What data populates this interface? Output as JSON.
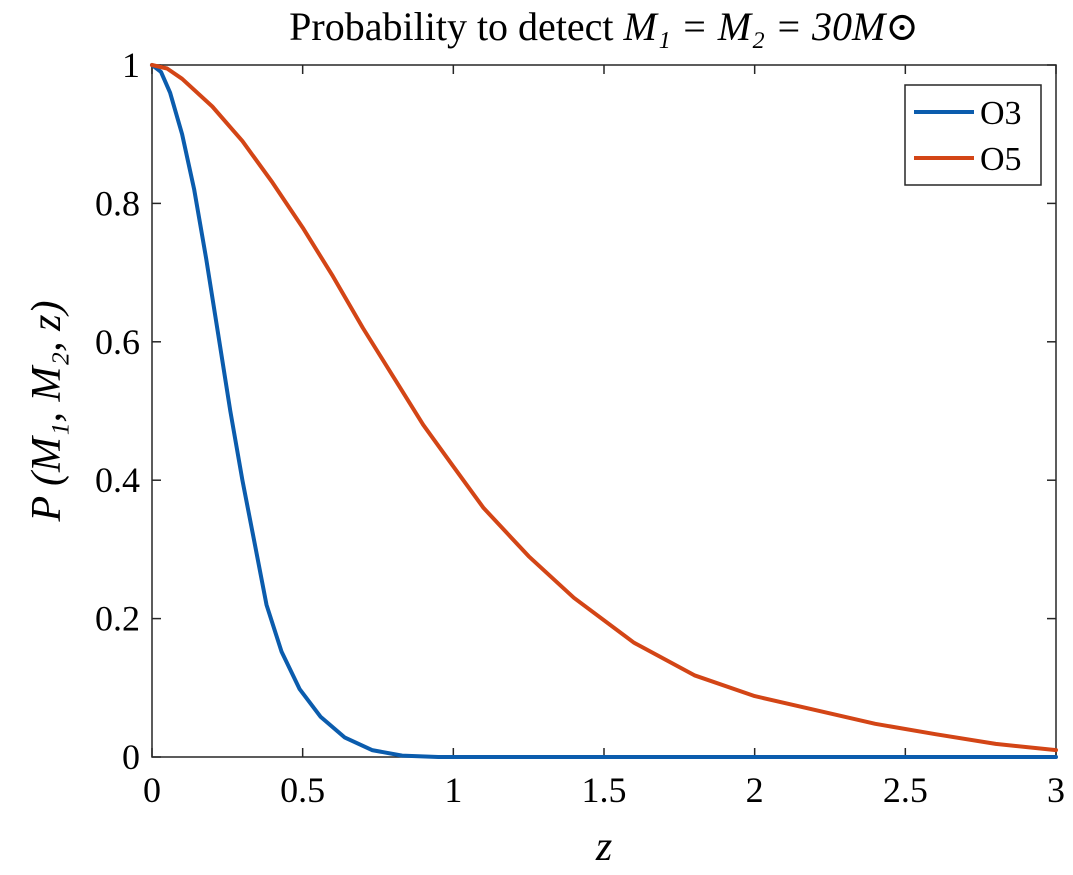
{
  "chart_data": {
    "type": "line",
    "title": {
      "prefix": "Probability to detect ",
      "math": "M₁ = M₂ = 30M⊙"
    },
    "xlabel": "z",
    "ylabel": "P (M₁, M₂, z)",
    "xlim": [
      0,
      3
    ],
    "ylim": [
      0,
      1
    ],
    "xticks": [
      0,
      0.5,
      1,
      1.5,
      2,
      2.5,
      3
    ],
    "xtick_labels": [
      "0",
      "0.5",
      "1",
      "1.5",
      "2",
      "2.5",
      "3"
    ],
    "yticks": [
      0,
      0.2,
      0.4,
      0.6,
      0.8,
      1
    ],
    "ytick_labels": [
      "0",
      "0.2",
      "0.4",
      "0.6",
      "0.8",
      "1"
    ],
    "legend_position": "top-right",
    "series": [
      {
        "name": "O3",
        "color": "#0b5cad",
        "x": [
          0,
          0.03,
          0.06,
          0.1,
          0.14,
          0.18,
          0.22,
          0.26,
          0.3,
          0.34,
          0.38,
          0.43,
          0.49,
          0.56,
          0.64,
          0.73,
          0.83,
          0.95,
          1.1,
          1.5,
          2.0,
          2.5,
          3.0
        ],
        "y": [
          1.0,
          0.99,
          0.96,
          0.9,
          0.82,
          0.72,
          0.61,
          0.5,
          0.4,
          0.31,
          0.22,
          0.152,
          0.098,
          0.058,
          0.028,
          0.01,
          0.002,
          0.0,
          0.0,
          0.0,
          0.0,
          0.0,
          0.0
        ]
      },
      {
        "name": "O5",
        "color": "#d34516",
        "x": [
          0,
          0.05,
          0.1,
          0.2,
          0.3,
          0.4,
          0.5,
          0.6,
          0.7,
          0.8,
          0.9,
          1.0,
          1.1,
          1.25,
          1.4,
          1.6,
          1.8,
          2.0,
          2.2,
          2.4,
          2.6,
          2.8,
          3.0
        ],
        "y": [
          1.0,
          0.995,
          0.98,
          0.94,
          0.89,
          0.83,
          0.765,
          0.695,
          0.62,
          0.55,
          0.48,
          0.42,
          0.36,
          0.29,
          0.23,
          0.165,
          0.118,
          0.088,
          0.068,
          0.048,
          0.033,
          0.019,
          0.01
        ]
      }
    ]
  }
}
